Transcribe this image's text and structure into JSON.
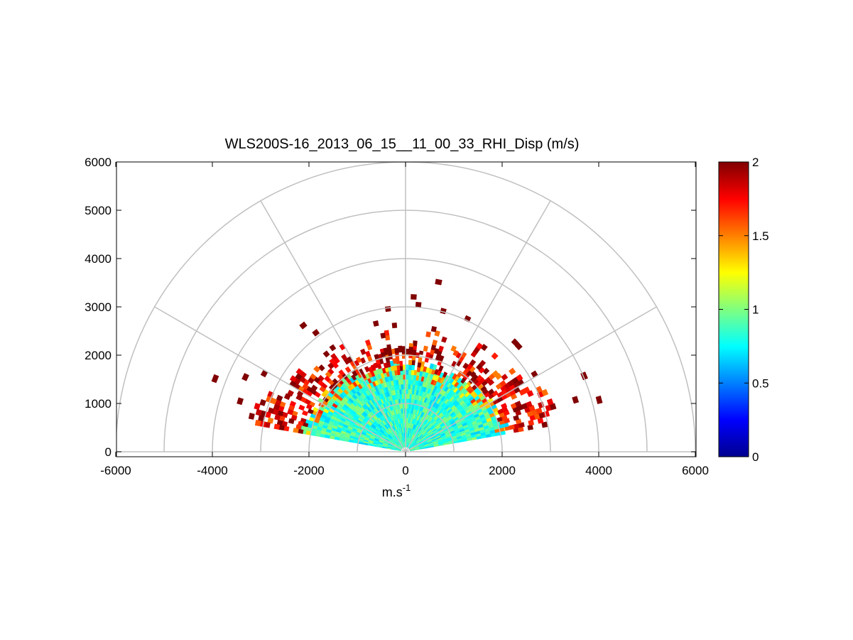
{
  "chart_data": {
    "type": "heatmap",
    "subtype": "polar RHI scan (range-height indicator)",
    "title": "WLS200S-16_2013_06_15__11_00_33_RHI_Disp (m/s)",
    "xlabel_base": "m.s",
    "xlabel_exp": "-1",
    "ylabel": "",
    "xlim": [
      -6000,
      6000
    ],
    "ylim": [
      0,
      6000
    ],
    "x_ticks": [
      "-6000",
      "-4000",
      "-2000",
      "0",
      "2000",
      "4000",
      "6000"
    ],
    "x_tick_values": [
      -6000,
      -4000,
      -2000,
      0,
      2000,
      4000,
      6000
    ],
    "y_ticks": [
      "0",
      "1000",
      "2000",
      "3000",
      "4000",
      "5000",
      "6000"
    ],
    "y_tick_values": [
      0,
      1000,
      2000,
      3000,
      4000,
      5000,
      6000
    ],
    "polar_grid": {
      "range_rings": [
        1000,
        2000,
        3000,
        4000,
        5000,
        6000
      ],
      "spoke_angles_deg": [
        0,
        30,
        60,
        90,
        120,
        150,
        180
      ]
    },
    "colorbar": {
      "colormap": "jet",
      "clim": [
        0,
        2
      ],
      "ticks": [
        "0",
        "0.5",
        "1",
        "1.5",
        "2"
      ],
      "tick_values": [
        0,
        0.5,
        1,
        1.5,
        2
      ]
    },
    "data_description": {
      "scan_elevation_deg": [
        10,
        170
      ],
      "range_gate_m": 100,
      "core_region": {
        "max_range_m": 1800,
        "typical_value": 0.85,
        "spread": 0.2
      },
      "outer_region": {
        "range_m": [
          1800,
          2400
        ],
        "typical_value": 1.9
      },
      "sparse_outliers_value": 2.0
    }
  }
}
